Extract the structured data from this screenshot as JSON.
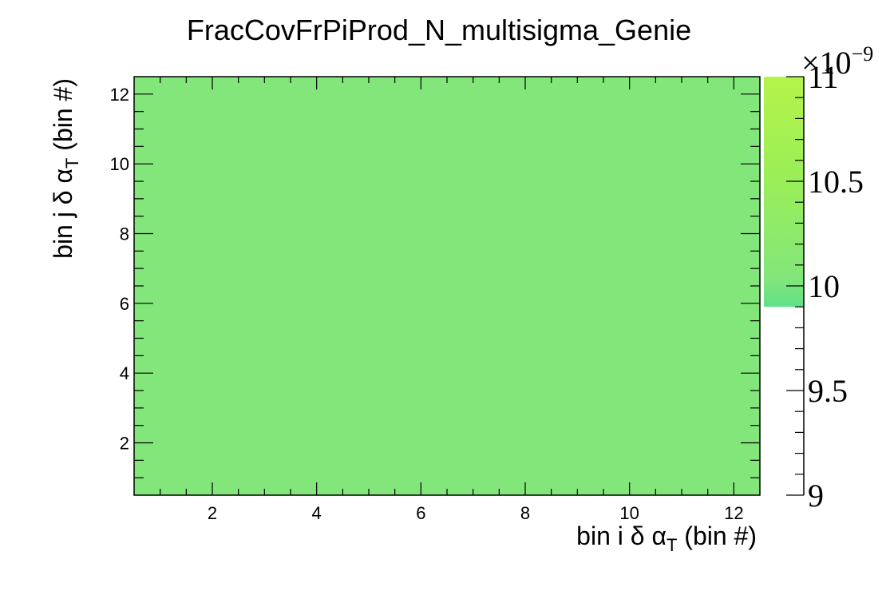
{
  "chart_data": {
    "type": "heatmap",
    "title": "FracCovFrPiProd_N_multisigma_Genie",
    "xlabel": {
      "pre": "bin i δ α",
      "sub": "T",
      "post": " (bin #)"
    },
    "ylabel": {
      "pre": "bin j δ α",
      "sub": "T",
      "post": " (bin #)"
    },
    "xlim": [
      0.5,
      12.5
    ],
    "ylim": [
      0.5,
      12.5
    ],
    "x_ticks": [
      "2",
      "4",
      "6",
      "8",
      "10",
      "12"
    ],
    "y_ticks": [
      "2",
      "4",
      "6",
      "8",
      "10",
      "12"
    ],
    "z_value": 9.97e-09,
    "cell_color": "#82e67a",
    "palette": {
      "zlim": [
        9,
        11
      ],
      "exponent_label": "×10",
      "exponent": "−9",
      "ticks": [
        "9",
        "9.5",
        "10",
        "10.5",
        "11"
      ],
      "filled_from": 9.9,
      "colors": {
        "low": "#5fe08a",
        "mid": "#82e67a",
        "high": "#b4f44a"
      }
    },
    "grid": false
  }
}
